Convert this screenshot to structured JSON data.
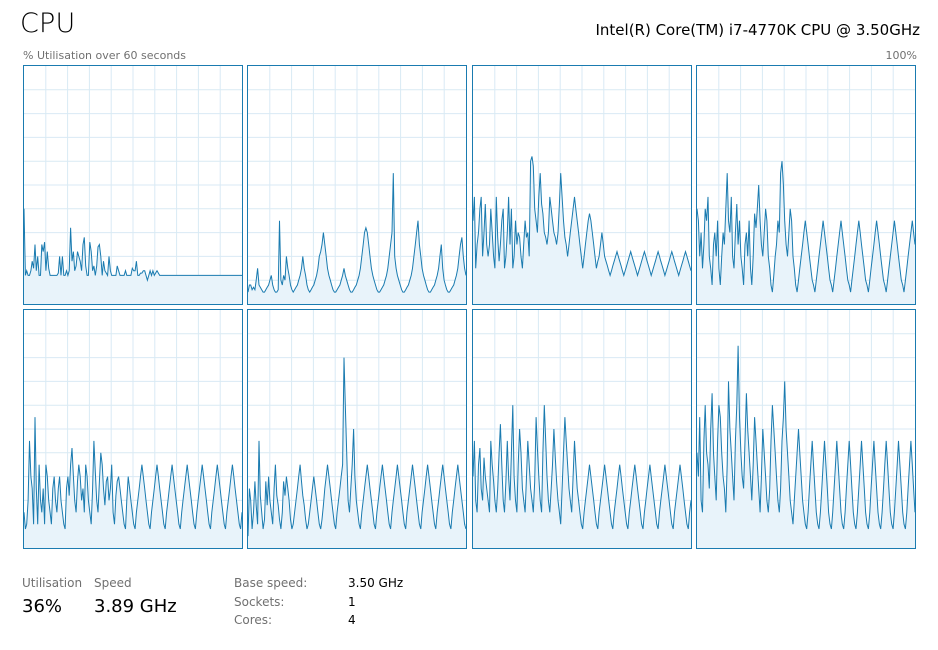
{
  "header": {
    "title": "CPU",
    "cpu_name": "Intel(R) Core(TM) i7-4770K CPU @ 3.50GHz",
    "utilisation_caption": "% Utilisation over 60 seconds",
    "max_label": "100%"
  },
  "stats": {
    "utilisation_label": "Utilisation",
    "utilisation_value": "36%",
    "speed_label": "Speed",
    "speed_value": "3.89 GHz"
  },
  "details": [
    {
      "label": "Base speed:",
      "value": "3.50 GHz"
    },
    {
      "label": "Sockets:",
      "value": "1"
    },
    {
      "label": "Cores:",
      "value": "4"
    }
  ],
  "colors": {
    "line": "#1a7bb0",
    "fill": "#e8f3fa",
    "grid": "#d9eaf4",
    "border": "#1a7bb0"
  },
  "chart_data": {
    "type": "line",
    "ylim": [
      0,
      100
    ],
    "x_range_seconds": 60,
    "grid": true,
    "series": [
      {
        "values": [
          40,
          12,
          14,
          12,
          12,
          14,
          18,
          15,
          25,
          14,
          20,
          12,
          12,
          25,
          22,
          26,
          14,
          22,
          15,
          12,
          12,
          12,
          12,
          12,
          12,
          13,
          20,
          12,
          20,
          12,
          12,
          14,
          12,
          14,
          32,
          18,
          22,
          14,
          16,
          22,
          20,
          18,
          14,
          25,
          28,
          16,
          12,
          12,
          26,
          22,
          14,
          16,
          12,
          16,
          24,
          25,
          20,
          12,
          18,
          14,
          13,
          12,
          20,
          14,
          12,
          12,
          12,
          12,
          16,
          14,
          12,
          12,
          12,
          12,
          14,
          12,
          12,
          12,
          12,
          15,
          14,
          14,
          18,
          12,
          12,
          13,
          13,
          14,
          14,
          12,
          10,
          12,
          14,
          12,
          14,
          12,
          13,
          14,
          13,
          12,
          12,
          12,
          12,
          12,
          12,
          12,
          12,
          12,
          12,
          12,
          12,
          12,
          12,
          12,
          12,
          12,
          12,
          12,
          12,
          12,
          12,
          12,
          12,
          12,
          12,
          12,
          12,
          12,
          12,
          12,
          12,
          12,
          12,
          12,
          12,
          12,
          12,
          12,
          12,
          12,
          12,
          12,
          12,
          12,
          12,
          12,
          12,
          12,
          12,
          12,
          12,
          12,
          12,
          12,
          12,
          12,
          12,
          12,
          12,
          12
        ]
      },
      {
        "values": [
          5,
          8,
          8,
          6,
          7,
          6,
          10,
          15,
          8,
          7,
          6,
          5,
          5,
          6,
          7,
          8,
          10,
          12,
          8,
          6,
          5,
          5,
          6,
          35,
          10,
          8,
          12,
          10,
          20,
          15,
          12,
          8,
          6,
          5,
          6,
          7,
          8,
          10,
          12,
          15,
          20,
          15,
          12,
          8,
          6,
          5,
          6,
          7,
          8,
          10,
          12,
          15,
          20,
          22,
          25,
          30,
          25,
          20,
          15,
          12,
          10,
          8,
          6,
          5,
          5,
          6,
          7,
          8,
          10,
          12,
          15,
          12,
          10,
          8,
          6,
          5,
          5,
          6,
          7,
          8,
          10,
          12,
          15,
          20,
          25,
          30,
          32,
          30,
          25,
          20,
          15,
          12,
          10,
          8,
          6,
          5,
          5,
          6,
          7,
          8,
          10,
          12,
          15,
          20,
          25,
          30,
          55,
          20,
          15,
          12,
          10,
          8,
          6,
          5,
          5,
          6,
          7,
          8,
          10,
          12,
          15,
          20,
          25,
          30,
          35,
          25,
          20,
          15,
          12,
          10,
          8,
          6,
          5,
          5,
          6,
          7,
          8,
          10,
          12,
          15,
          20,
          25,
          15,
          10,
          8,
          6,
          5,
          5,
          6,
          7,
          8,
          10,
          12,
          15,
          20,
          25,
          28,
          20,
          15,
          12
        ]
      },
      {
        "values": [
          35,
          45,
          15,
          25,
          30,
          40,
          45,
          20,
          30,
          42,
          25,
          20,
          25,
          40,
          30,
          20,
          15,
          45,
          28,
          18,
          25,
          35,
          40,
          15,
          20,
          30,
          45,
          25,
          40,
          15,
          20,
          35,
          25,
          30,
          28,
          20,
          15,
          25,
          35,
          28,
          30,
          20,
          60,
          62,
          58,
          40,
          35,
          30,
          45,
          55,
          42,
          38,
          30,
          28,
          25,
          30,
          45,
          40,
          35,
          30,
          28,
          25,
          30,
          42,
          55,
          45,
          35,
          28,
          25,
          20,
          25,
          30,
          35,
          40,
          45,
          40,
          35,
          30,
          25,
          20,
          15,
          20,
          25,
          30,
          35,
          38,
          35,
          30,
          25,
          20,
          15,
          18,
          20,
          25,
          30,
          25,
          20,
          18,
          16,
          14,
          12,
          14,
          16,
          18,
          20,
          22,
          20,
          18,
          16,
          14,
          12,
          14,
          16,
          18,
          20,
          22,
          20,
          18,
          16,
          14,
          12,
          14,
          16,
          18,
          20,
          22,
          20,
          18,
          16,
          14,
          12,
          14,
          16,
          18,
          20,
          22,
          20,
          18,
          16,
          14,
          12,
          14,
          16,
          18,
          20,
          22,
          20,
          18,
          16,
          14,
          12,
          14,
          16,
          18,
          20,
          22,
          20,
          18,
          16,
          14
        ]
      },
      {
        "values": [
          40,
          35,
          20,
          30,
          15,
          25,
          40,
          35,
          45,
          20,
          15,
          8,
          25,
          30,
          20,
          35,
          15,
          8,
          20,
          30,
          25,
          40,
          55,
          35,
          30,
          45,
          20,
          15,
          30,
          42,
          25,
          35,
          20,
          15,
          8,
          25,
          30,
          20,
          35,
          15,
          8,
          20,
          38,
          32,
          40,
          50,
          35,
          25,
          20,
          30,
          40,
          35,
          20,
          15,
          8,
          5,
          12,
          20,
          25,
          35,
          30,
          55,
          60,
          50,
          35,
          25,
          20,
          30,
          40,
          35,
          20,
          15,
          8,
          5,
          10,
          15,
          20,
          25,
          30,
          35,
          30,
          25,
          20,
          15,
          10,
          8,
          5,
          10,
          15,
          20,
          25,
          30,
          35,
          30,
          25,
          20,
          15,
          10,
          8,
          5,
          10,
          15,
          20,
          25,
          30,
          35,
          30,
          25,
          20,
          15,
          10,
          8,
          5,
          10,
          15,
          20,
          25,
          30,
          35,
          30,
          25,
          20,
          15,
          10,
          8,
          5,
          10,
          15,
          20,
          25,
          30,
          35,
          30,
          25,
          20,
          15,
          10,
          8,
          5,
          10,
          15,
          20,
          25,
          30,
          35,
          30,
          25,
          20,
          15,
          10,
          8,
          5,
          10,
          15,
          20,
          25,
          30,
          35,
          30,
          25
        ]
      },
      {
        "values": [
          15,
          8,
          10,
          20,
          45,
          30,
          25,
          10,
          55,
          25,
          10,
          35,
          20,
          15,
          25,
          10,
          35,
          30,
          20,
          15,
          10,
          25,
          30,
          20,
          15,
          25,
          30,
          20,
          15,
          10,
          8,
          25,
          30,
          22,
          35,
          42,
          30,
          20,
          15,
          28,
          35,
          30,
          20,
          25,
          15,
          35,
          30,
          20,
          15,
          10,
          25,
          45,
          32,
          20,
          15,
          28,
          40,
          35,
          25,
          18,
          28,
          30,
          20,
          25,
          35,
          15,
          10,
          22,
          28,
          30,
          25,
          20,
          15,
          10,
          8,
          20,
          30,
          25,
          20,
          15,
          10,
          8,
          15,
          20,
          25,
          30,
          35,
          30,
          25,
          20,
          15,
          10,
          8,
          15,
          20,
          25,
          30,
          35,
          30,
          25,
          20,
          15,
          10,
          8,
          15,
          20,
          25,
          30,
          35,
          30,
          25,
          20,
          15,
          10,
          8,
          15,
          20,
          25,
          30,
          35,
          30,
          25,
          20,
          15,
          10,
          8,
          15,
          20,
          25,
          30,
          35,
          30,
          25,
          20,
          15,
          10,
          8,
          15,
          20,
          25,
          30,
          35,
          30,
          25,
          20,
          15,
          10,
          8,
          15,
          20,
          25,
          30,
          35,
          30,
          25,
          20,
          15,
          10,
          8,
          15
        ]
      },
      {
        "values": [
          5,
          25,
          20,
          8,
          15,
          28,
          18,
          10,
          45,
          22,
          15,
          8,
          12,
          28,
          18,
          30,
          20,
          15,
          10,
          25,
          35,
          22,
          18,
          12,
          8,
          15,
          28,
          22,
          30,
          25,
          20,
          12,
          8,
          10,
          15,
          20,
          25,
          30,
          35,
          28,
          22,
          18,
          12,
          8,
          10,
          15,
          20,
          25,
          30,
          25,
          20,
          15,
          10,
          8,
          12,
          18,
          25,
          30,
          35,
          30,
          25,
          20,
          15,
          10,
          8,
          15,
          20,
          25,
          30,
          35,
          80,
          60,
          40,
          20,
          15,
          25,
          35,
          50,
          30,
          20,
          15,
          10,
          8,
          15,
          20,
          25,
          30,
          35,
          30,
          25,
          20,
          15,
          10,
          8,
          15,
          20,
          25,
          30,
          35,
          30,
          25,
          20,
          15,
          10,
          8,
          15,
          20,
          25,
          30,
          35,
          30,
          25,
          20,
          15,
          10,
          8,
          15,
          20,
          25,
          30,
          35,
          30,
          25,
          20,
          15,
          10,
          8,
          15,
          20,
          25,
          30,
          35,
          30,
          25,
          20,
          15,
          10,
          8,
          15,
          20,
          25,
          30,
          35,
          30,
          25,
          20,
          15,
          10,
          8,
          15,
          20,
          25,
          30,
          35,
          30,
          25,
          20,
          15,
          10,
          8
        ]
      },
      {
        "values": [
          30,
          45,
          20,
          15,
          35,
          42,
          25,
          20,
          38,
          30,
          25,
          20,
          15,
          45,
          35,
          28,
          20,
          15,
          25,
          40,
          52,
          35,
          20,
          15,
          28,
          45,
          30,
          20,
          40,
          60,
          30,
          20,
          15,
          35,
          50,
          40,
          25,
          20,
          15,
          30,
          45,
          35,
          25,
          20,
          15,
          28,
          55,
          42,
          30,
          20,
          15,
          40,
          60,
          45,
          30,
          20,
          15,
          25,
          35,
          50,
          38,
          28,
          20,
          15,
          10,
          25,
          40,
          55,
          45,
          35,
          25,
          20,
          15,
          30,
          45,
          35,
          25,
          20,
          15,
          10,
          8,
          15,
          20,
          25,
          30,
          35,
          30,
          25,
          20,
          15,
          10,
          8,
          15,
          20,
          25,
          30,
          35,
          30,
          25,
          20,
          15,
          10,
          8,
          15,
          20,
          25,
          30,
          35,
          30,
          25,
          20,
          15,
          10,
          8,
          15,
          20,
          25,
          30,
          35,
          30,
          25,
          20,
          15,
          10,
          8,
          15,
          20,
          25,
          30,
          35,
          30,
          25,
          20,
          15,
          10,
          8,
          15,
          20,
          25,
          30,
          35,
          30,
          25,
          20,
          15,
          10,
          8,
          15,
          20,
          25,
          30,
          35,
          30,
          25,
          20,
          15,
          10,
          8,
          15,
          20
        ]
      },
      {
        "values": [
          40,
          30,
          55,
          20,
          15,
          45,
          60,
          40,
          35,
          25,
          50,
          65,
          40,
          30,
          20,
          45,
          60,
          55,
          40,
          30,
          25,
          15,
          35,
          70,
          50,
          40,
          30,
          20,
          45,
          60,
          85,
          55,
          40,
          30,
          25,
          45,
          65,
          50,
          40,
          30,
          20,
          35,
          55,
          45,
          35,
          25,
          15,
          30,
          50,
          40,
          30,
          20,
          15,
          25,
          45,
          60,
          50,
          40,
          30,
          20,
          15,
          25,
          45,
          55,
          70,
          50,
          40,
          30,
          20,
          15,
          10,
          20,
          30,
          40,
          50,
          40,
          30,
          20,
          15,
          10,
          8,
          15,
          25,
          35,
          45,
          35,
          25,
          15,
          10,
          8,
          15,
          25,
          35,
          45,
          35,
          25,
          15,
          10,
          8,
          15,
          25,
          35,
          45,
          35,
          25,
          15,
          10,
          8,
          15,
          25,
          35,
          45,
          35,
          25,
          15,
          10,
          8,
          15,
          25,
          35,
          45,
          35,
          25,
          15,
          10,
          8,
          15,
          25,
          35,
          45,
          35,
          25,
          15,
          10,
          8,
          15,
          25,
          35,
          45,
          35,
          25,
          15,
          10,
          8,
          15,
          25,
          35,
          45,
          35,
          25,
          15,
          10,
          8,
          15,
          25,
          35,
          45,
          35,
          25,
          15
        ]
      }
    ]
  }
}
